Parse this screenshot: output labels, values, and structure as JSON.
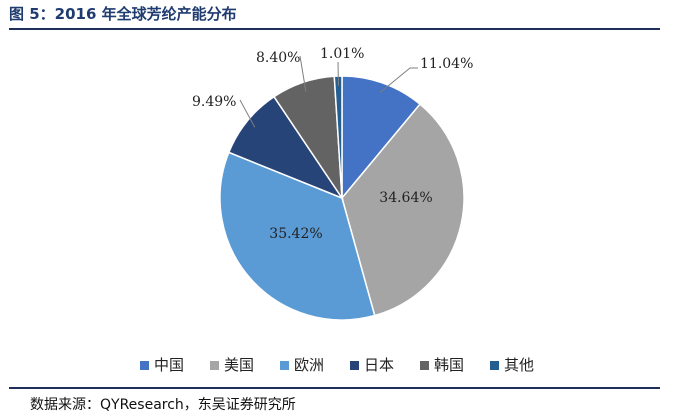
{
  "header": {
    "title": "图 5：2016 年全球芳纶产能分布"
  },
  "footer": {
    "source": "数据来源：QYResearch，东吴证券研究所"
  },
  "chart_data": {
    "type": "pie",
    "title": "",
    "legend_position": "bottom",
    "slices": [
      {
        "name": "中国",
        "value": 11.04,
        "label": "11.04%",
        "color": "#4472c4"
      },
      {
        "name": "美国",
        "value": 34.64,
        "label": "34.64%",
        "color": "#a5a5a5"
      },
      {
        "name": "欧洲",
        "value": 35.42,
        "label": "35.42%",
        "color": "#5b9bd5"
      },
      {
        "name": "日本",
        "value": 9.49,
        "label": "9.49%",
        "color": "#264478"
      },
      {
        "name": "韩国",
        "value": 8.4,
        "label": "8.40%",
        "color": "#636363"
      },
      {
        "name": "其他",
        "value": 1.01,
        "label": "1.01%",
        "color": "#255e91"
      }
    ]
  }
}
